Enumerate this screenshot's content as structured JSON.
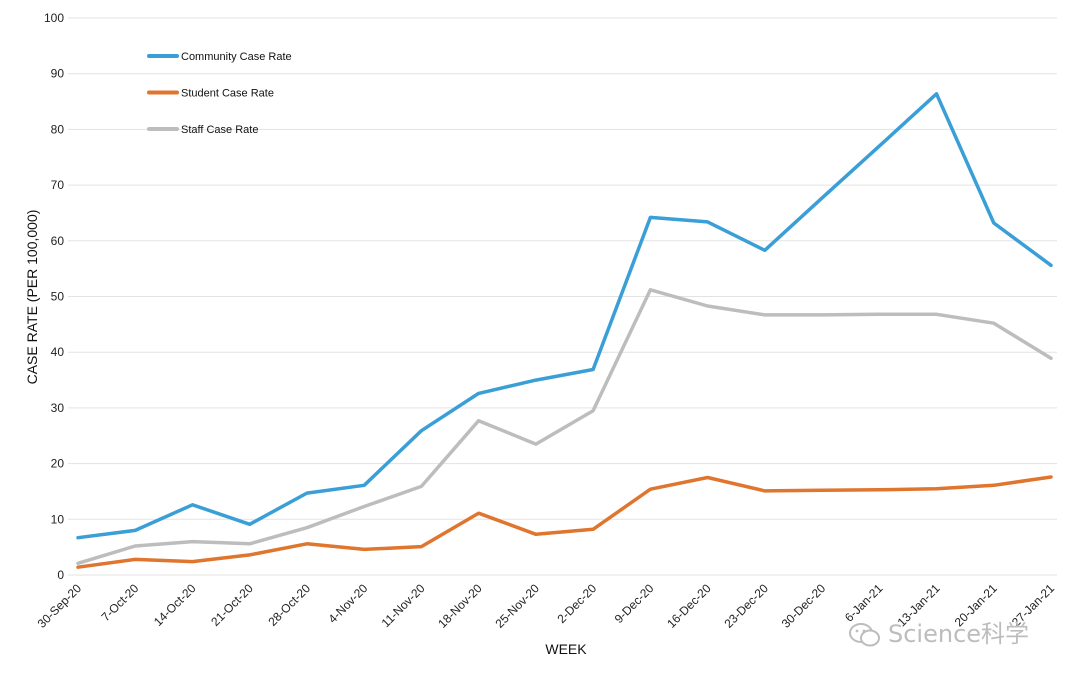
{
  "chart_data": {
    "type": "line",
    "title": "",
    "xlabel": "WEEK",
    "ylabel": "CASE RATE (PER 100,000)",
    "ylim": [
      0,
      100
    ],
    "yticks": [
      0,
      10,
      20,
      30,
      40,
      50,
      60,
      70,
      80,
      90,
      100
    ],
    "grid": true,
    "legend_position": "top-left",
    "categories": [
      "30-Sep-20",
      "7-Oct-20",
      "14-Oct-20",
      "21-Oct-20",
      "28-Oct-20",
      "4-Nov-20",
      "11-Nov-20",
      "18-Nov-20",
      "25-Nov-20",
      "2-Dec-20",
      "9-Dec-20",
      "16-Dec-20",
      "23-Dec-20",
      "30-Dec-20",
      "6-Jan-21",
      "13-Jan-21",
      "20-Jan-21",
      "27-Jan-21"
    ],
    "series": [
      {
        "name": "Community Case Rate",
        "color": "#3a9fd6",
        "values": [
          6.7,
          8.0,
          12.6,
          9.1,
          14.7,
          16.1,
          25.9,
          32.6,
          35.0,
          36.9,
          64.2,
          63.4,
          58.3,
          67.7,
          77.0,
          86.4,
          63.2,
          55.6
        ]
      },
      {
        "name": "Student Case Rate",
        "color": "#e0752e",
        "values": [
          1.4,
          2.8,
          2.4,
          3.6,
          5.6,
          4.6,
          5.1,
          11.1,
          7.3,
          8.2,
          15.4,
          17.5,
          15.1,
          15.2,
          15.3,
          15.5,
          16.1,
          17.6
        ]
      },
      {
        "name": "Staff Case Rate",
        "color": "#bdbdbd",
        "values": [
          2.1,
          5.2,
          6.0,
          5.6,
          8.5,
          12.3,
          15.9,
          27.7,
          23.5,
          29.5,
          51.2,
          48.3,
          46.7,
          46.7,
          46.8,
          46.8,
          45.2,
          38.9
        ]
      }
    ]
  },
  "watermark": {
    "text": "Science科学"
  }
}
